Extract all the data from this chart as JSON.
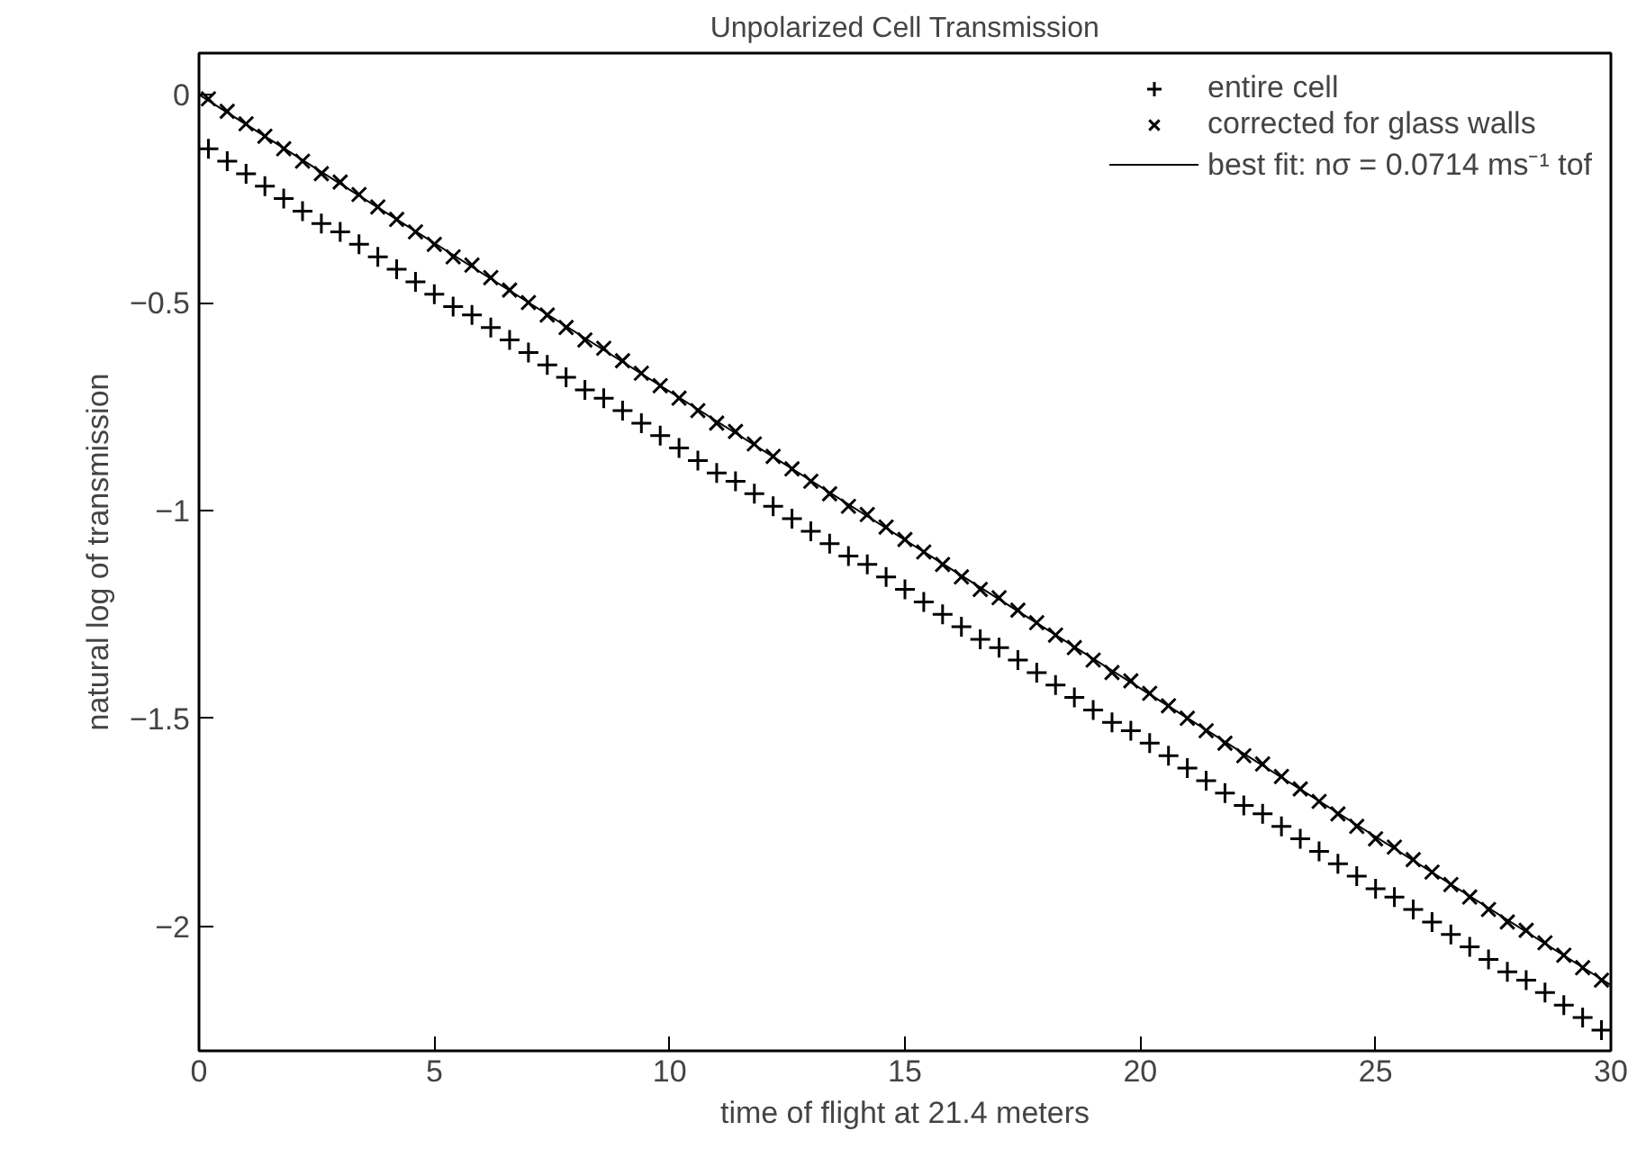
{
  "chart_data": {
    "type": "scatter",
    "title": "Unpolarized Cell Transmission",
    "xlabel": "time of flight at 21.4 meters",
    "ylabel": "natural log of transmission",
    "x": [
      0.2,
      0.6,
      1.0,
      1.4,
      1.8,
      2.2,
      2.6,
      3.0,
      3.4,
      3.8,
      4.2,
      4.6,
      5.0,
      5.4,
      5.8,
      6.2,
      6.6,
      7.0,
      7.4,
      7.8,
      8.2,
      8.6,
      9.0,
      9.4,
      9.8,
      10.2,
      10.6,
      11.0,
      11.4,
      11.8,
      12.2,
      12.6,
      13.0,
      13.4,
      13.8,
      14.2,
      14.6,
      15.0,
      15.4,
      15.8,
      16.2,
      16.6,
      17.0,
      17.4,
      17.8,
      18.2,
      18.6,
      19.0,
      19.4,
      19.8,
      20.2,
      20.6,
      21.0,
      21.4,
      21.8,
      22.2,
      22.6,
      23.0,
      23.4,
      23.8,
      24.2,
      24.6,
      25.0,
      25.4,
      25.8,
      26.2,
      26.6,
      27.0,
      27.4,
      27.8,
      28.2,
      28.6,
      29.0,
      29.4,
      29.8
    ],
    "series": [
      {
        "name": "entire cell",
        "color": "#000000",
        "marker": "cross",
        "values": [
          -0.13,
          -0.16,
          -0.19,
          -0.22,
          -0.25,
          -0.28,
          -0.31,
          -0.33,
          -0.36,
          -0.39,
          -0.42,
          -0.45,
          -0.48,
          -0.51,
          -0.53,
          -0.56,
          -0.59,
          -0.62,
          -0.65,
          -0.68,
          -0.71,
          -0.73,
          -0.76,
          -0.79,
          -0.82,
          -0.85,
          -0.88,
          -0.91,
          -0.93,
          -0.96,
          -0.99,
          -1.02,
          -1.05,
          -1.08,
          -1.11,
          -1.13,
          -1.16,
          -1.19,
          -1.22,
          -1.25,
          -1.28,
          -1.31,
          -1.33,
          -1.36,
          -1.39,
          -1.42,
          -1.45,
          -1.48,
          -1.51,
          -1.53,
          -1.56,
          -1.59,
          -1.62,
          -1.65,
          -1.68,
          -1.71,
          -1.73,
          -1.76,
          -1.79,
          -1.82,
          -1.85,
          -1.88,
          -1.91,
          -1.93,
          -1.96,
          -1.99,
          -2.02,
          -2.05,
          -2.08,
          -2.11,
          -2.13,
          -2.16,
          -2.19,
          -2.22,
          -2.25
        ]
      },
      {
        "name": "corrected for glass walls",
        "color": "#000000",
        "marker": "x",
        "values": [
          -0.01,
          -0.04,
          -0.07,
          -0.1,
          -0.13,
          -0.16,
          -0.19,
          -0.21,
          -0.24,
          -0.27,
          -0.3,
          -0.33,
          -0.36,
          -0.39,
          -0.41,
          -0.44,
          -0.47,
          -0.5,
          -0.53,
          -0.56,
          -0.59,
          -0.61,
          -0.64,
          -0.67,
          -0.7,
          -0.73,
          -0.76,
          -0.79,
          -0.81,
          -0.84,
          -0.87,
          -0.9,
          -0.93,
          -0.96,
          -0.99,
          -1.01,
          -1.04,
          -1.07,
          -1.1,
          -1.13,
          -1.16,
          -1.19,
          -1.21,
          -1.24,
          -1.27,
          -1.3,
          -1.33,
          -1.36,
          -1.39,
          -1.41,
          -1.44,
          -1.47,
          -1.5,
          -1.53,
          -1.56,
          -1.59,
          -1.61,
          -1.64,
          -1.67,
          -1.7,
          -1.73,
          -1.76,
          -1.79,
          -1.81,
          -1.84,
          -1.87,
          -1.9,
          -1.93,
          -1.96,
          -1.99,
          -2.01,
          -2.04,
          -2.07,
          -2.1,
          -2.13
        ]
      },
      {
        "name": "best fit: nσ = 0.0714 ms⁻¹ tof",
        "type": "line",
        "color": "#000000",
        "line_style": "solid",
        "x": [
          0,
          30
        ],
        "values": [
          0,
          -2.142
        ]
      }
    ],
    "xlim": [
      0,
      30
    ],
    "ylim": [
      -2.3,
      0.1
    ],
    "xticks": [
      0,
      5,
      10,
      15,
      20,
      25,
      30
    ],
    "yticks": [
      0,
      -0.5,
      -1,
      -1.5,
      -2
    ],
    "grid": false,
    "legend": "top right"
  }
}
